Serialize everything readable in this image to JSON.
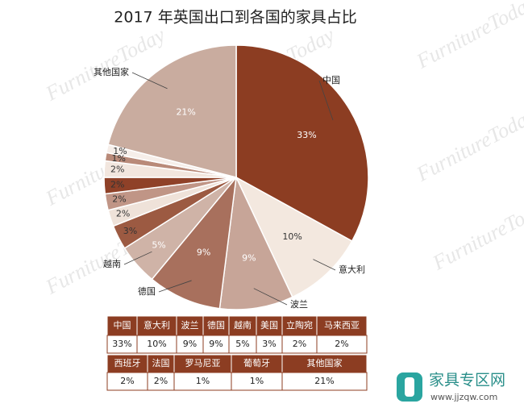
{
  "chart_data": {
    "type": "pie",
    "title": "2017 年英国出口到各国的家具占比",
    "categories": [
      "中国",
      "意大利",
      "波兰",
      "德国",
      "越南",
      "美国",
      "立陶宛",
      "马来西亚",
      "西班牙",
      "法国",
      "罗马尼亚",
      "葡萄牙",
      "其他国家"
    ],
    "values": [
      33,
      10,
      9,
      9,
      5,
      3,
      2,
      2,
      2,
      2,
      1,
      1,
      21
    ],
    "value_labels": [
      "33%",
      "10%",
      "9%",
      "9%",
      "5%",
      "3%",
      "2%",
      "2%",
      "2%",
      "2%",
      "1%",
      "1%",
      "21%"
    ],
    "colors": [
      "#8c3d22",
      "#f3e8df",
      "#c7a598",
      "#a8705d",
      "#cfb3a7",
      "#9c5a42",
      "#efe2d9",
      "#c09586",
      "#8f4128",
      "#f2e6de",
      "#b98a79",
      "#f6eee9",
      "#c9ac9f"
    ]
  },
  "watermark": "FurnitureToday",
  "logo": {
    "name": "家具专区网",
    "url": "www.jjzqw.com"
  }
}
